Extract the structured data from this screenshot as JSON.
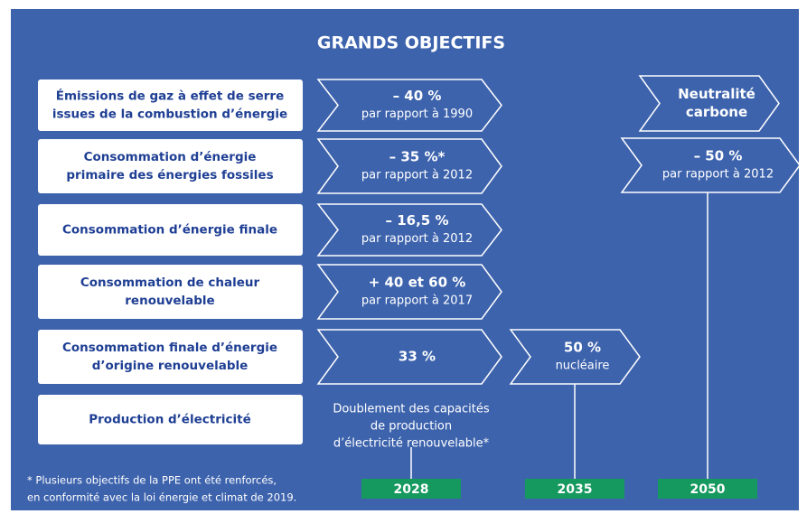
{
  "title": "GRANDS OBJECTIFS",
  "objectives": [
    {
      "label": [
        "Émissions de gaz à effet de serre",
        "issues de la combustion d’énergie"
      ]
    },
    {
      "label": [
        "Consommation d’énergie",
        "primaire des énergies fossiles"
      ]
    },
    {
      "label": [
        "Consommation d’énergie finale"
      ]
    },
    {
      "label": [
        "Consommation de chaleur",
        "renouvelable"
      ]
    },
    {
      "label": [
        "Consommation finale d’énergie",
        "d’origine renouvelable"
      ]
    },
    {
      "label": [
        "Production d’électricité"
      ]
    }
  ],
  "columns": [
    {
      "year": "2028",
      "targets": [
        {
          "main": [
            "– 40 %"
          ],
          "sub": [
            "par rapport à 1990"
          ]
        },
        {
          "main": [
            "– 35 %*"
          ],
          "sub": [
            "par rapport à 2012"
          ]
        },
        {
          "main": [
            "– 16,5 %"
          ],
          "sub": [
            "par rapport à 2012"
          ]
        },
        {
          "main": [
            "+ 40 et 60 %"
          ],
          "sub": [
            "par rapport à 2017"
          ]
        },
        {
          "main": [
            "33 %"
          ],
          "sub": []
        }
      ],
      "text": [
        "Doublement des capacités",
        "de production",
        "d’électricité renouvelable*"
      ]
    },
    {
      "year": "2035",
      "targets": [
        {
          "main": [
            "50 %"
          ],
          "sub": [
            "nucléaire"
          ]
        }
      ]
    },
    {
      "year": "2050",
      "targets": [
        {
          "main": [
            "Neutralité",
            "carbone"
          ],
          "sub": []
        },
        {
          "main": [
            "– 50 %"
          ],
          "sub": [
            "par rapport à 2012"
          ]
        }
      ]
    }
  ],
  "footnote": [
    "* Plusieurs objectifs de la PPE ont été renforcés,",
    "en conformité avec la loi énergie et climat de 2019."
  ]
}
